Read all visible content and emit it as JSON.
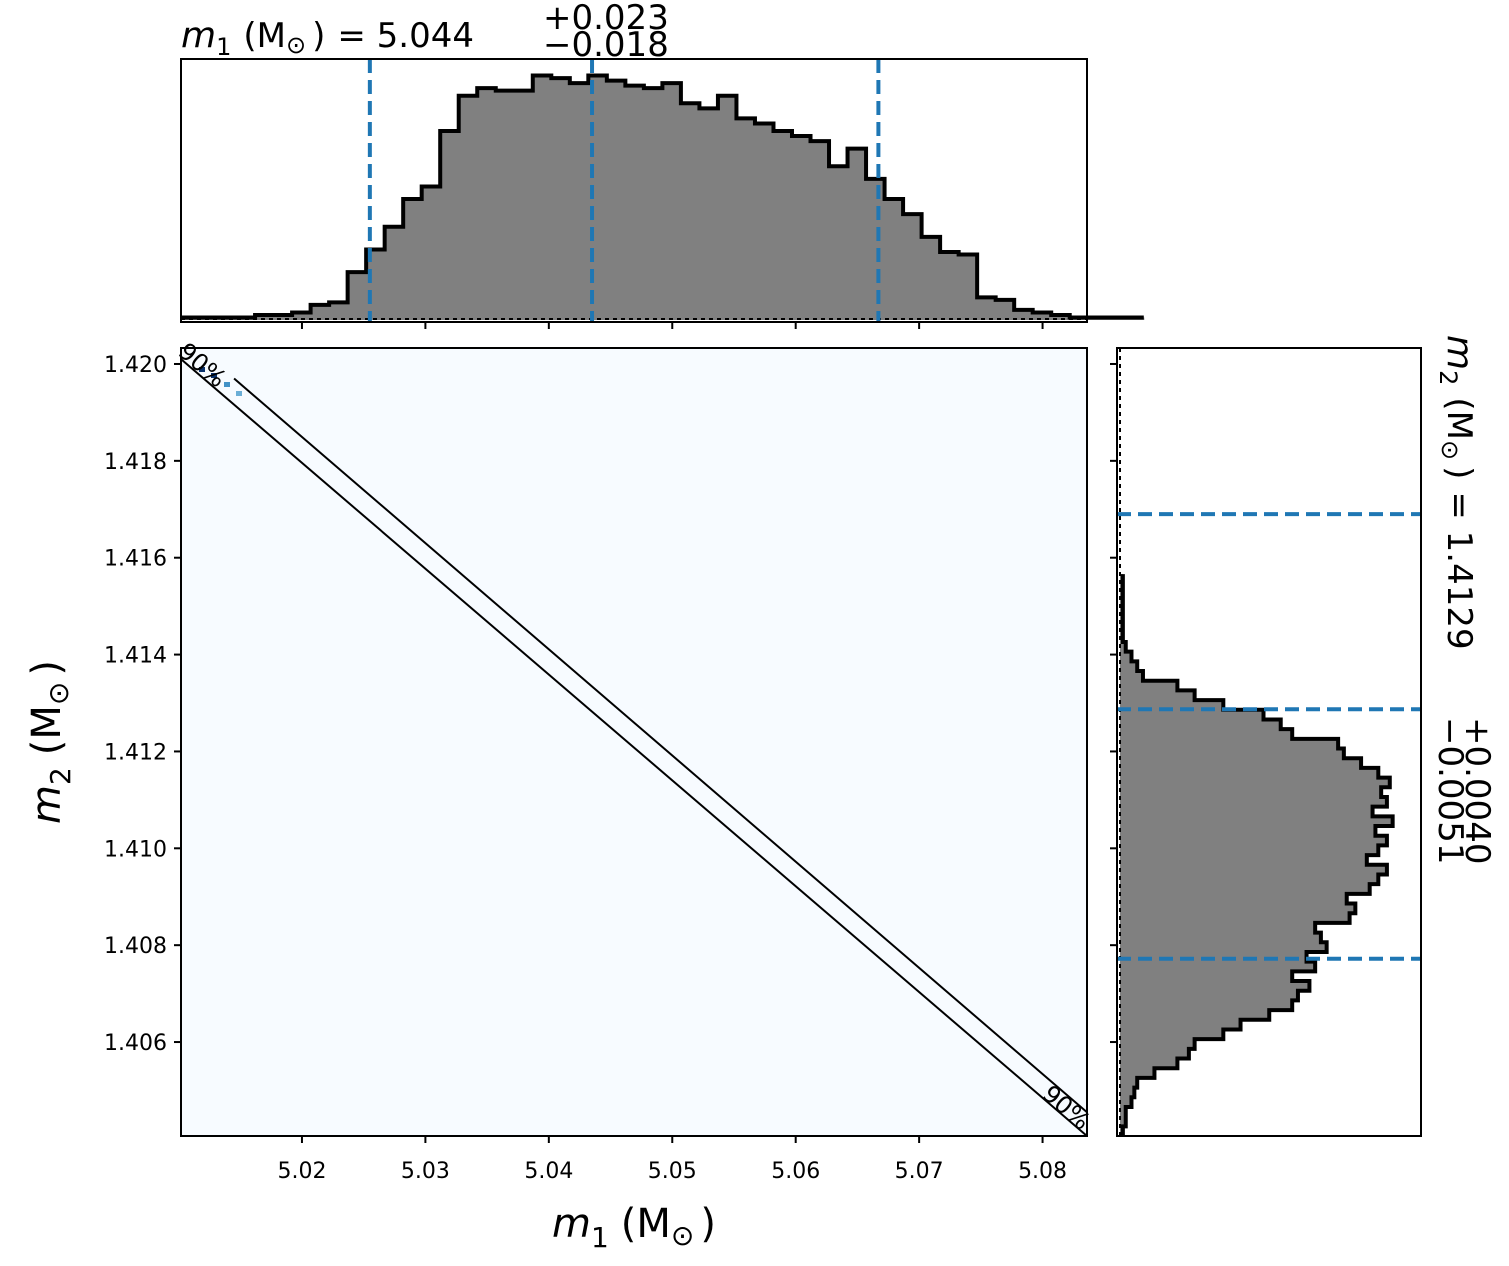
{
  "colors": {
    "hist_fill": "#808080",
    "hist_edge": "#000000",
    "quantile_line": "#1f77b4",
    "density_background": "#f7fbff",
    "contour_line": "#000000"
  },
  "chart_data": [
    {
      "panel": "m1-marginal",
      "type": "bar",
      "title": {
        "var": "m",
        "sub": "1",
        "unit": "(M",
        "sun": "⊙",
        "close": ")",
        "eq": "= 5.044",
        "plus": "+0.023",
        "minus": "−0.018"
      },
      "xlim": [
        5.0102,
        5.0836
      ],
      "quantiles": [
        5.0255,
        5.0435,
        5.0667
      ],
      "bins": {
        "start": 5.0102,
        "width": 0.0015,
        "counts": [
          0.01,
          0.01,
          0.01,
          0.01,
          0.02,
          0.02,
          0.03,
          0.06,
          0.07,
          0.19,
          0.28,
          0.37,
          0.48,
          0.53,
          0.75,
          0.89,
          0.92,
          0.91,
          0.91,
          0.97,
          0.96,
          0.94,
          0.97,
          0.95,
          0.93,
          0.92,
          0.94,
          0.86,
          0.84,
          0.89,
          0.8,
          0.78,
          0.75,
          0.73,
          0.71,
          0.61,
          0.68,
          0.56,
          0.48,
          0.42,
          0.33,
          0.27,
          0.26,
          0.09,
          0.08,
          0.04,
          0.03,
          0.02,
          0.01,
          0.01,
          0.01,
          0.01
        ]
      }
    },
    {
      "panel": "joint",
      "type": "heatmap",
      "xlabel": {
        "var": "m",
        "sub": "1",
        "unit": "(M",
        "sun": "⊙",
        "close": ")"
      },
      "ylabel": {
        "var": "m",
        "sub": "2",
        "unit": "(M",
        "sun": "⊙",
        "close": ")"
      },
      "xlim": [
        5.0102,
        5.0836
      ],
      "ylim": [
        1.40406,
        1.42033
      ],
      "x_ticks": [
        "5.02",
        "5.03",
        "5.04",
        "5.05",
        "5.06",
        "5.07",
        "5.08"
      ],
      "x_tick_values": [
        5.02,
        5.03,
        5.04,
        5.05,
        5.06,
        5.07,
        5.08
      ],
      "y_ticks": [
        "1.406",
        "1.408",
        "1.410",
        "1.412",
        "1.414",
        "1.416",
        "1.418",
        "1.420"
      ],
      "y_tick_values": [
        1.406,
        1.408,
        1.41,
        1.412,
        1.414,
        1.416,
        1.418,
        1.42
      ],
      "contours": [
        {
          "label": "90%",
          "points": [
            [
              5.0102,
              1.4201
            ],
            [
              5.0836,
              1.40406
            ]
          ]
        },
        {
          "label": "",
          "points": [
            [
              5.0145,
              1.4197
            ],
            [
              5.0836,
              1.40455
            ]
          ]
        }
      ],
      "contour_labels": [
        {
          "text": "90%",
          "x": 5.0115,
          "y": 1.41985
        },
        {
          "text": "90%",
          "x": 5.0815,
          "y": 1.40452
        }
      ]
    },
    {
      "panel": "m2-marginal",
      "type": "bar",
      "title": {
        "var": "m",
        "sub": "2",
        "unit": "(M",
        "sun": "⊙",
        "close": ")",
        "eq": "= 1.4129",
        "plus": "+0.0040",
        "minus": "−0.0051"
      },
      "ylim": [
        1.40406,
        1.42033
      ],
      "quantiles": [
        1.40772,
        1.41287,
        1.4169
      ],
      "bins": {
        "start": 1.40406,
        "width": 0.0002,
        "counts": [
          0.01,
          0.02,
          0.02,
          0.04,
          0.05,
          0.06,
          0.12,
          0.2,
          0.24,
          0.26,
          0.36,
          0.42,
          0.52,
          0.6,
          0.62,
          0.66,
          0.6,
          0.68,
          0.65,
          0.72,
          0.7,
          0.68,
          0.8,
          0.82,
          0.79,
          0.87,
          0.9,
          0.93,
          0.86,
          0.9,
          0.93,
          0.89,
          0.95,
          0.88,
          0.93,
          0.91,
          0.94,
          0.9,
          0.84,
          0.78,
          0.76,
          0.6,
          0.56,
          0.5,
          0.36,
          0.26,
          0.2,
          0.08,
          0.06,
          0.04,
          0.02,
          0.01,
          0.01,
          0.01,
          0.01,
          0.01,
          0.01,
          0.01
        ]
      }
    }
  ]
}
